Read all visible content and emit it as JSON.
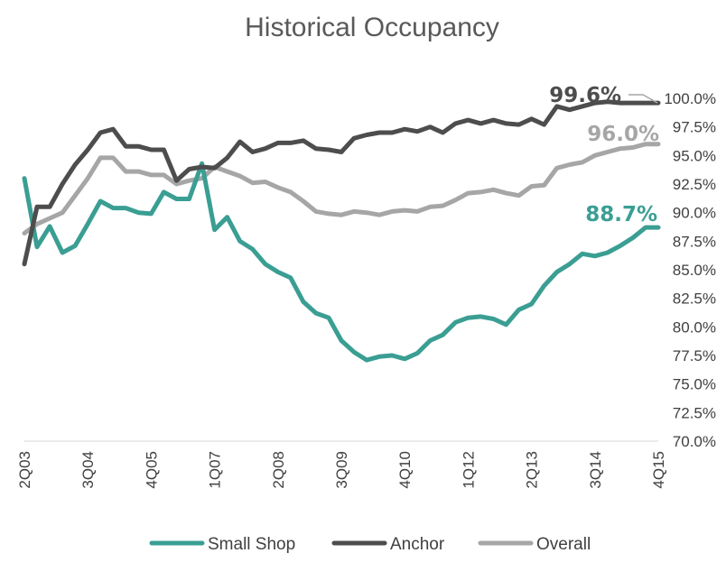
{
  "chart_data": {
    "type": "line",
    "title": "Historical Occupancy",
    "xlabel": "",
    "ylabel": "",
    "ylim": [
      70.0,
      100.0
    ],
    "y_ticks": [
      "70.0%",
      "72.5%",
      "75.0%",
      "77.5%",
      "80.0%",
      "82.5%",
      "85.0%",
      "87.5%",
      "90.0%",
      "92.5%",
      "95.0%",
      "97.5%",
      "100.0%"
    ],
    "x_tick_labels": [
      "2Q03",
      "3Q04",
      "4Q05",
      "1Q07",
      "2Q08",
      "3Q09",
      "4Q10",
      "1Q12",
      "2Q13",
      "3Q14",
      "4Q15"
    ],
    "grid": false,
    "legend_position": "bottom",
    "x": [
      "2Q03",
      "3Q03",
      "4Q03",
      "1Q04",
      "2Q04",
      "3Q04",
      "4Q04",
      "1Q05",
      "2Q05",
      "3Q05",
      "4Q05",
      "1Q06",
      "2Q06",
      "3Q06",
      "4Q06",
      "1Q07",
      "2Q07",
      "3Q07",
      "4Q07",
      "1Q08",
      "2Q08",
      "3Q08",
      "4Q08",
      "1Q09",
      "2Q09",
      "3Q09",
      "4Q09",
      "1Q10",
      "2Q10",
      "3Q10",
      "4Q10",
      "1Q11",
      "2Q11",
      "3Q11",
      "4Q11",
      "1Q12",
      "2Q12",
      "3Q12",
      "4Q12",
      "1Q13",
      "2Q13",
      "3Q13",
      "4Q13",
      "1Q14",
      "2Q14",
      "3Q14",
      "4Q14",
      "1Q15",
      "2Q15",
      "3Q15",
      "4Q15"
    ],
    "series": [
      {
        "name": "Small Shop",
        "color": "#3a9e93",
        "values": [
          93.0,
          87.0,
          88.8,
          86.5,
          87.1,
          89.0,
          91.0,
          90.4,
          90.4,
          90.0,
          89.9,
          91.8,
          91.2,
          91.2,
          94.3,
          88.5,
          89.6,
          87.5,
          86.8,
          85.5,
          84.8,
          84.3,
          82.2,
          81.2,
          80.8,
          78.8,
          77.8,
          77.1,
          77.4,
          77.5,
          77.2,
          77.7,
          78.8,
          79.3,
          80.4,
          80.8,
          80.9,
          80.7,
          80.2,
          81.5,
          82.0,
          83.6,
          84.8,
          85.5,
          86.4,
          86.2,
          86.5,
          87.1,
          87.8,
          88.7,
          88.7
        ],
        "end_label": "88.7%"
      },
      {
        "name": "Anchor",
        "color": "#4d4d4d",
        "values": [
          85.5,
          90.5,
          90.5,
          92.5,
          94.2,
          95.5,
          97.0,
          97.3,
          95.8,
          95.8,
          95.5,
          95.5,
          92.8,
          93.8,
          94.0,
          93.9,
          94.8,
          96.2,
          95.3,
          95.6,
          96.1,
          96.1,
          96.3,
          95.6,
          95.5,
          95.3,
          96.5,
          96.8,
          97.0,
          97.0,
          97.3,
          97.1,
          97.5,
          97.0,
          97.8,
          98.1,
          97.8,
          98.1,
          97.8,
          97.7,
          98.2,
          97.7,
          99.3,
          99.0,
          99.3,
          99.6,
          99.7,
          99.6,
          99.6,
          99.6,
          99.6
        ],
        "end_label": "99.6%"
      },
      {
        "name": "Overall",
        "color": "#a6a6a6",
        "values": [
          88.2,
          89.0,
          89.5,
          90.0,
          91.5,
          93.0,
          94.8,
          94.8,
          93.6,
          93.6,
          93.3,
          93.3,
          92.5,
          92.8,
          93.0,
          94.0,
          93.6,
          93.2,
          92.6,
          92.7,
          92.2,
          91.8,
          91.0,
          90.1,
          89.9,
          89.8,
          90.1,
          90.0,
          89.8,
          90.1,
          90.2,
          90.1,
          90.5,
          90.6,
          91.1,
          91.7,
          91.8,
          92.0,
          91.7,
          91.5,
          92.3,
          92.4,
          93.9,
          94.2,
          94.4,
          95.0,
          95.3,
          95.6,
          95.7,
          96.0,
          96.0
        ],
        "end_label": "96.0%"
      }
    ]
  }
}
